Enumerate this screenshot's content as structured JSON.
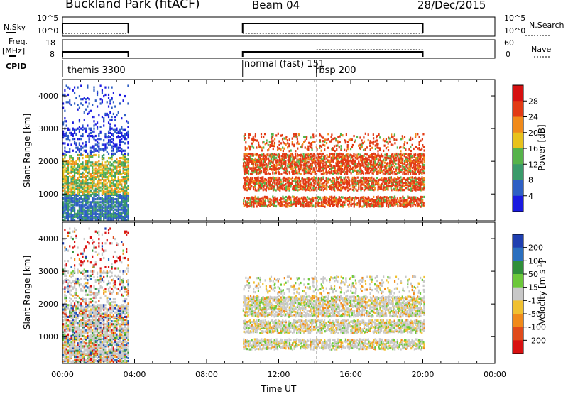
{
  "header": {
    "station": "Buckland Park (fitACF)",
    "beam": "Beam 04",
    "date": "28/Dec/2015"
  },
  "top_strips": {
    "nsky_label": "N.Sky",
    "nsky_ticks": [
      "10^5",
      "10^0"
    ],
    "freq_label_line1": "Freq.",
    "freq_label_line2": "[MHz]",
    "freq_ticks": [
      "18",
      "8"
    ],
    "cpid_label": "CPID",
    "nsearch_label": "N.Search",
    "nave_label": "Nave",
    "right_ticks_nsky": [
      "10^5",
      "10^0"
    ],
    "right_ticks_nave": [
      "60",
      "0"
    ]
  },
  "cpid_segments": [
    {
      "name": "themis 3300",
      "start_hour": 0.0,
      "end_hour": 3.65
    },
    {
      "name": "normal (fast) 151",
      "start_hour": 10.0,
      "end_hour": 14.1
    },
    {
      "name": "rbsp 200",
      "start_hour": 14.1,
      "end_hour": 20.0
    }
  ],
  "axis": {
    "x_label": "Time UT",
    "x_ticks": [
      "00:00",
      "04:00",
      "08:00",
      "12:00",
      "16:00",
      "20:00",
      "00:00"
    ],
    "y_label": "Slant Range [km]",
    "y_ticks": [
      "1000",
      "2000",
      "3000",
      "4000"
    ]
  },
  "power_colorbar": {
    "label": "Power [dB]",
    "ticks": [
      "4",
      "8",
      "12",
      "16",
      "20",
      "24",
      "28"
    ],
    "colors": [
      "#1a1ae0",
      "#2e5fc4",
      "#3a9a6a",
      "#56b34a",
      "#e8c21c",
      "#f08a1a",
      "#e23a14",
      "#d61010"
    ]
  },
  "velocity_colorbar": {
    "label": "Velocity [m s",
    "label_sup": "-1",
    "label_end": "]",
    "ticks": [
      "200",
      "100",
      "50",
      "15",
      "-15",
      "-50",
      "-100",
      "-200"
    ],
    "colors": [
      "#1f3fb0",
      "#2a6fbf",
      "#2f8f3a",
      "#6cc83a",
      "#c8c8c8",
      "#f0c030",
      "#f08a1a",
      "#e04a1a",
      "#d81010"
    ]
  },
  "chart_data": {
    "type": "heatmap",
    "title": "Buckland Park (fitACF)",
    "x_range_hours": [
      0,
      24
    ],
    "y_range_km": [
      180,
      4500
    ],
    "xlabel": "Time UT",
    "ylabel": "Slant Range [km]",
    "coverage": [
      {
        "start_hour": 0.0,
        "end_hour": 3.65
      },
      {
        "start_hour": 10.0,
        "end_hour": 20.0
      }
    ],
    "panels": [
      {
        "name": "Power",
        "unit": "dB",
        "range": [
          0,
          30
        ]
      },
      {
        "name": "Velocity",
        "unit": "m s-1",
        "range": [
          -200,
          200
        ]
      }
    ]
  }
}
